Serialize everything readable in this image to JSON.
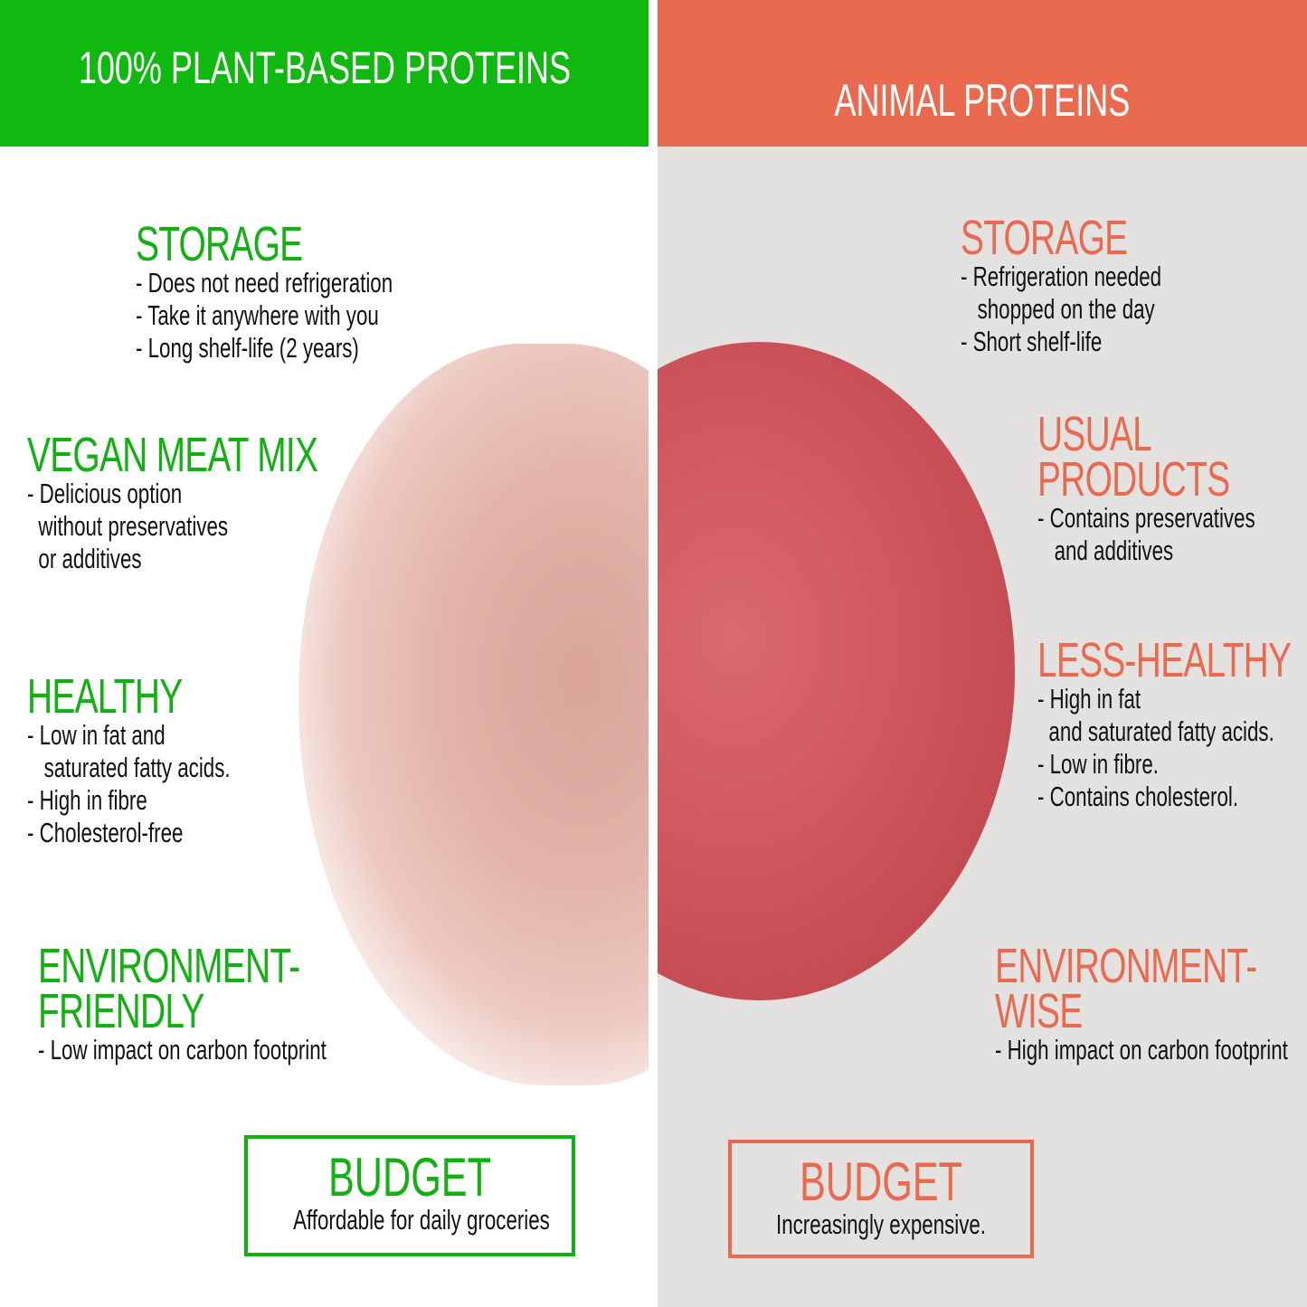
{
  "left": {
    "header": "100% PLANT-BASED PROTEINS",
    "color": "#10b110",
    "sections": [
      {
        "title": [
          "STORAGE"
        ],
        "lines": [
          "- Does not need refrigeration",
          "- Take it anywhere with you",
          "- Long shelf-life (2 years)"
        ]
      },
      {
        "title": [
          "VEGAN MEAT MIX"
        ],
        "lines": [
          "- Delicious option",
          "  without preservatives",
          "  or additives"
        ]
      },
      {
        "title": [
          "HEALTHY"
        ],
        "lines": [
          "- Low in fat and",
          "   saturated fatty acids.",
          "- High in fibre",
          "- Cholesterol-free"
        ]
      },
      {
        "title": [
          "ENVIRONMENT-",
          "FRIENDLY"
        ],
        "lines": [
          "- Low impact on carbon footprint"
        ]
      }
    ],
    "budget": {
      "title": "BUDGET",
      "text": "Affordable for daily groceries"
    }
  },
  "right": {
    "header": "ANIMAL PROTEINS",
    "color": "#ea6a50",
    "sections": [
      {
        "title": [
          "STORAGE"
        ],
        "lines": [
          "- Refrigeration needed",
          "   shopped on the day",
          "- Short shelf-life"
        ]
      },
      {
        "title": [
          "USUAL",
          "PRODUCTS"
        ],
        "lines": [
          "- Contains preservatives",
          "   and additives"
        ]
      },
      {
        "title": [
          "LESS-HEALTHY"
        ],
        "lines": [
          "- High in fat",
          "  and saturated fatty acids.",
          "- Low in fibre.",
          "- Contains cholesterol."
        ]
      },
      {
        "title": [
          "ENVIRONMENT-",
          "WISE"
        ],
        "lines": [
          "- High impact on carbon footprint"
        ]
      }
    ],
    "budget": {
      "title": "BUDGET",
      "text": "Increasingly expensive."
    }
  }
}
